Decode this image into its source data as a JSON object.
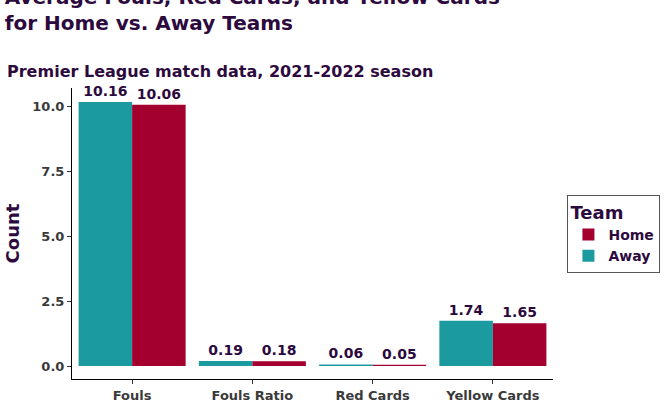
{
  "chart_data": {
    "type": "bar",
    "title": "Average Fouls, Red Cards, and Yellow Cards\nfor Home vs. Away Teams",
    "subtitle": "Premier League match data, 2021-2022 season",
    "y_label": "Count",
    "legend_title": "Team",
    "categories": [
      "Fouls",
      "Fouls Ratio",
      "Red Cards",
      "Yellow Cards"
    ],
    "series": [
      {
        "name": "Away",
        "color": "#1b9aa0",
        "values": [
          10.16,
          0.19,
          0.06,
          1.74
        ]
      },
      {
        "name": "Home",
        "color": "#a3002f",
        "values": [
          10.06,
          0.18,
          0.05,
          1.65
        ]
      }
    ],
    "ylim": [
      -0.5,
      10.7
    ],
    "yticks": [
      {
        "value": 0,
        "label": "0.0"
      },
      2.5,
      {
        "value": 5,
        "label": "5.0"
      },
      7.5,
      {
        "value": 10,
        "label": "10.0"
      }
    ],
    "grid": false,
    "legend": "right",
    "data_labels": true
  }
}
